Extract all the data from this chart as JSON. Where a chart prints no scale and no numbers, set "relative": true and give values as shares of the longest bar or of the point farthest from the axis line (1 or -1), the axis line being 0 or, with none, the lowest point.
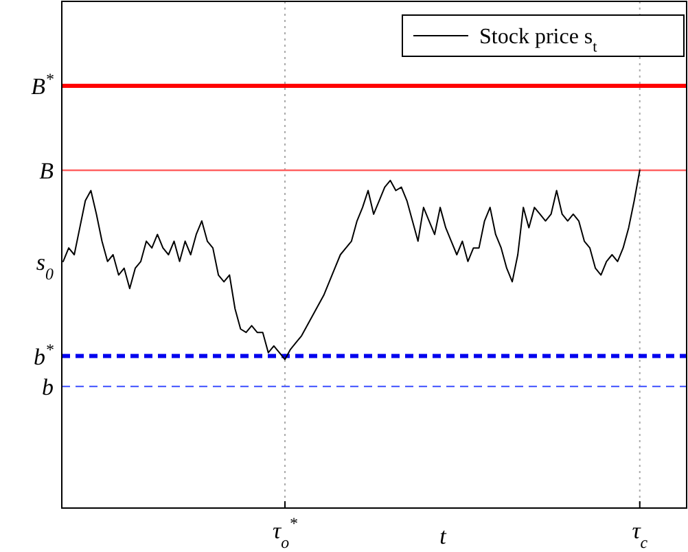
{
  "chart_data": {
    "type": "line",
    "xlabel": "t",
    "legend": "top right",
    "grid": "x",
    "relative": true,
    "categories": [
      null,
      null,
      null,
      null,
      null,
      null,
      null,
      null,
      null,
      null,
      null,
      null,
      null,
      null,
      null,
      null,
      null,
      null,
      null,
      null,
      null,
      null,
      null,
      null,
      null,
      null,
      null,
      null,
      null,
      null,
      null,
      null,
      null,
      null,
      null,
      null,
      null,
      null,
      null,
      null,
      "τ$_{o}$$^{*}$",
      null,
      null,
      null,
      null,
      null,
      null,
      null,
      null,
      null,
      null,
      null,
      null,
      null,
      null,
      null,
      null,
      null,
      null,
      null,
      null,
      null,
      null,
      null,
      null,
      null,
      null,
      null,
      null,
      null,
      null,
      null,
      null,
      null,
      null,
      null,
      null,
      null,
      null,
      null,
      null,
      null,
      null,
      null,
      null,
      null,
      null,
      null,
      null,
      null,
      null,
      null,
      null,
      null,
      null,
      null,
      null,
      null,
      null,
      null,
      null,
      null,
      null,
      null,
      "τ$_{c}$"
    ],
    "ref_lines": [
      {
        "axis": "y",
        "value": 1.25,
        "label": "B$^{*}$",
        "color": "#ff0000",
        "line_style": "solid"
      },
      {
        "axis": "y",
        "value": 1,
        "label": "B",
        "color": "#ff6060",
        "line_style": "solid"
      },
      {
        "axis": "y",
        "value": 0.45,
        "label": "b$^{*}$",
        "color": "#0000ee",
        "line_style": "dashed"
      },
      {
        "axis": "y",
        "value": 0.36,
        "label": "b",
        "color": "#5060ff",
        "line_style": "dashed"
      }
    ],
    "annotations": [
      "s$_{0}$"
    ],
    "series": [
      {
        "name": "Stock price s$_{t}$",
        "color": "#000000",
        "values": [
          0.73,
          0.77,
          0.75,
          0.83,
          0.91,
          0.94,
          0.87,
          0.79,
          0.73,
          0.75,
          0.69,
          0.71,
          0.65,
          0.71,
          0.73,
          0.79,
          0.77,
          0.81,
          0.77,
          0.75,
          0.79,
          0.73,
          0.79,
          0.75,
          0.81,
          0.85,
          0.79,
          0.77,
          0.69,
          0.67,
          0.69,
          0.59,
          0.53,
          0.52,
          0.54,
          0.52,
          0.52,
          0.46,
          0.48,
          0.46,
          0.44,
          0.47,
          0.49,
          0.51,
          0.54,
          0.57,
          0.6,
          0.63,
          0.67,
          0.71,
          0.75,
          0.77,
          0.79,
          0.85,
          0.89,
          0.94,
          0.87,
          0.91,
          0.95,
          0.97,
          0.94,
          0.95,
          0.91,
          0.85,
          0.79,
          0.89,
          0.85,
          0.81,
          0.89,
          0.83,
          0.79,
          0.75,
          0.79,
          0.73,
          0.77,
          0.77,
          0.85,
          0.89,
          0.81,
          0.77,
          0.71,
          0.67,
          0.75,
          0.89,
          0.83,
          0.89,
          0.87,
          0.85,
          0.87,
          0.94,
          0.87,
          0.85,
          0.87,
          0.85,
          0.79,
          0.77,
          0.71,
          0.69,
          0.73,
          0.75,
          0.73,
          0.77,
          0.83,
          0.91,
          1
        ]
      }
    ]
  }
}
